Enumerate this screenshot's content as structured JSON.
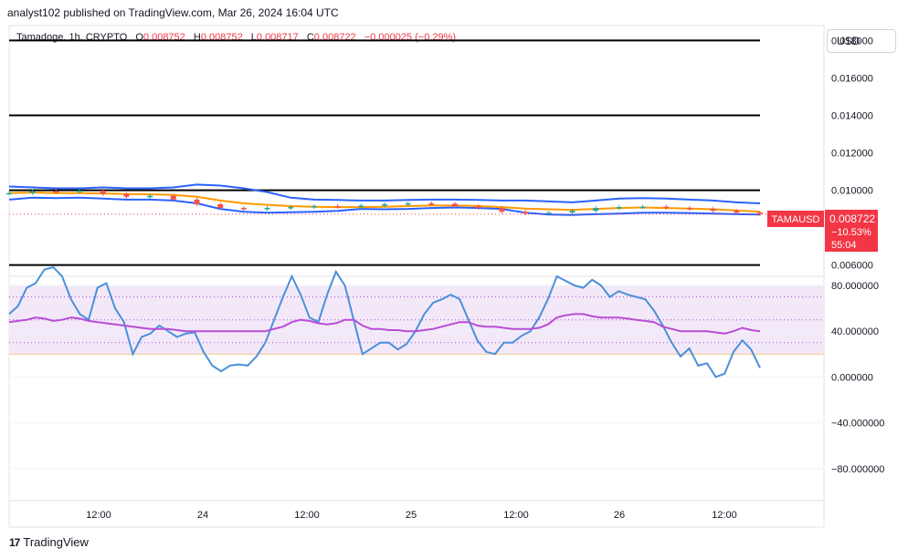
{
  "header": {
    "published": "analyst102 published on TradingView.com, Mar 26, 2024 16:04 UTC"
  },
  "legend": {
    "symbol": "Tamadoge, 1h, CRYPTO",
    "open_label": "O",
    "open": "0.008752",
    "high_label": "H",
    "high": "0.008752",
    "low_label": "L",
    "low": "0.008717",
    "close_label": "C",
    "close": "0.008722",
    "change": "−0.000025 (−0.29%)"
  },
  "currency": "USD",
  "price_tag": {
    "symbol": "TAMAUSD",
    "price": "0.008722",
    "change_pct": "−10.53%",
    "countdown": "55:04"
  },
  "footer": {
    "brand": "TradingView"
  },
  "colors": {
    "up": "#26a69a",
    "down": "#ef5350",
    "bollinger": "#2962ff",
    "ma": "#ff9800",
    "stoch_k": "#4a90d9",
    "rsi": "#b84dd6",
    "price_tag": "#f23645"
  },
  "chart_data": [
    {
      "type": "line",
      "title": "",
      "price_axis_ticks": [
        "0.018000",
        "0.016000",
        "0.014000",
        "0.012000",
        "0.010000",
        "0.006000"
      ],
      "time_axis_labels": [
        "12:00",
        "24",
        "12:00",
        "25",
        "12:00",
        "26",
        "12:00"
      ],
      "ylim": [
        0.0054,
        0.0188
      ],
      "horizontal_lines": [
        0.018,
        0.014,
        0.01,
        0.006
      ],
      "series": [
        {
          "values": [
            0.0095,
            0.0096,
            0.00958,
            0.0096,
            0.00955,
            0.0095,
            0.0095,
            0.00945,
            0.0093,
            0.009,
            0.00885,
            0.0088,
            0.00882,
            0.00885,
            0.0089,
            0.009,
            0.00898,
            0.009,
            0.00905,
            0.00908,
            0.00905,
            0.009,
            0.0088,
            0.0087,
            0.00868,
            0.00872,
            0.00875,
            0.0088,
            0.0088,
            0.00878,
            0.00875,
            0.00872,
            0.0087
          ]
        },
        {
          "values": [
            0.0102,
            0.01015,
            0.0101,
            0.0101,
            0.01015,
            0.0101,
            0.0101,
            0.01015,
            0.0103,
            0.01025,
            0.0101,
            0.0099,
            0.0096,
            0.0095,
            0.00948,
            0.00945,
            0.00945,
            0.00948,
            0.0095,
            0.0095,
            0.00948,
            0.00945,
            0.00945,
            0.0094,
            0.00935,
            0.00945,
            0.00955,
            0.00958,
            0.00955,
            0.0095,
            0.00945,
            0.00935,
            0.0093
          ]
        },
        {
          "values": [
            0.00985,
            0.00988,
            0.00985,
            0.00985,
            0.00982,
            0.0098,
            0.00978,
            0.00975,
            0.00965,
            0.00945,
            0.0093,
            0.00922,
            0.00915,
            0.00912,
            0.0091,
            0.0091,
            0.00912,
            0.00915,
            0.00918,
            0.00918,
            0.00915,
            0.0091,
            0.00902,
            0.00898,
            0.00895,
            0.009,
            0.00905,
            0.00908,
            0.00905,
            0.00902,
            0.00898,
            0.00892,
            0.00885
          ]
        }
      ],
      "close_values": [
        0.00985,
        0.00995,
        0.0099,
        0.00998,
        0.0098,
        0.00965,
        0.0097,
        0.0095,
        0.00925,
        0.00905,
        0.009,
        0.00905,
        0.0091,
        0.00915,
        0.00912,
        0.00918,
        0.00925,
        0.0093,
        0.00928,
        0.00915,
        0.00905,
        0.00885,
        0.00875,
        0.0088,
        0.0089,
        0.00905,
        0.0091,
        0.00912,
        0.00905,
        0.009,
        0.0089,
        0.0088,
        0.008722
      ]
    },
    {
      "type": "line",
      "title": "",
      "axis_ticks": [
        "80.000000",
        "40.000000",
        "0.000000",
        "−40.000000",
        "−80.000000"
      ],
      "ylim": [
        -108,
        88
      ],
      "band": [
        20,
        80
      ],
      "series": [
        {
          "values": [
            55,
            62,
            78,
            82,
            94,
            96,
            88,
            68,
            55,
            50,
            78,
            82,
            60,
            48,
            20,
            35,
            38,
            45,
            40,
            35,
            38,
            39,
            22,
            10,
            5,
            10,
            11,
            10,
            18,
            30,
            50,
            70,
            88,
            72,
            52,
            48,
            72,
            92,
            80,
            50,
            20,
            25,
            30,
            30,
            24,
            29,
            40,
            55,
            65,
            68,
            72,
            68,
            50,
            32,
            22,
            20,
            30,
            30,
            36,
            40,
            52,
            68,
            88,
            84,
            80,
            78,
            85,
            80,
            70,
            75,
            72,
            70,
            68,
            58,
            45,
            30,
            18,
            25,
            10,
            12,
            0,
            3,
            22,
            32,
            24,
            8
          ]
        },
        {
          "values": [
            48,
            49,
            50,
            52,
            51,
            49,
            50,
            52,
            51,
            49,
            48,
            47,
            46,
            45,
            44,
            43,
            42,
            42,
            42,
            41,
            40,
            40,
            40,
            40,
            40,
            40,
            40,
            40,
            40,
            40,
            42,
            44,
            48,
            50,
            49,
            47,
            46,
            47,
            50,
            50,
            45,
            42,
            42,
            41,
            41,
            40,
            40,
            41,
            42,
            44,
            46,
            48,
            48,
            45,
            44,
            44,
            43,
            42,
            42,
            42,
            43,
            46,
            52,
            54,
            55,
            55,
            53,
            52,
            52,
            52,
            51,
            50,
            49,
            48,
            44,
            42,
            40,
            40,
            40,
            40,
            39,
            38,
            40,
            43,
            41,
            40
          ]
        }
      ]
    }
  ]
}
